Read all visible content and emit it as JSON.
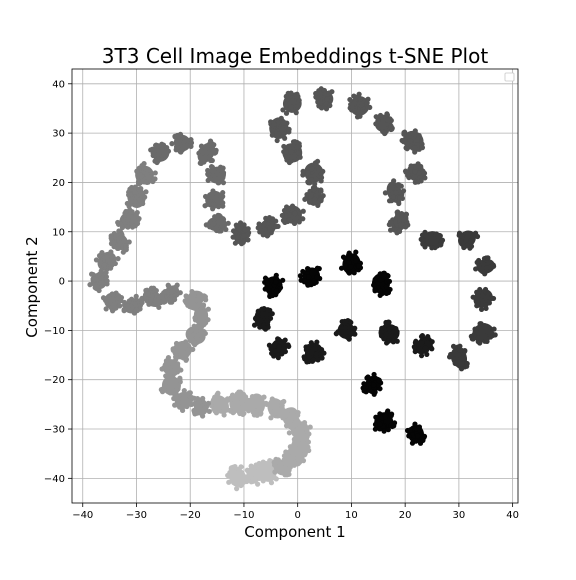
{
  "chart_data": {
    "type": "scatter",
    "title": "3T3 Cell Image Embeddings t-SNE Plot",
    "xlabel": "Component 1",
    "ylabel": "Component 2",
    "xlim": [
      -42,
      41
    ],
    "ylim": [
      -45,
      43
    ],
    "xticks": [
      -40,
      -30,
      -20,
      -10,
      0,
      10,
      20,
      30,
      40
    ],
    "yticks": [
      -40,
      -30,
      -20,
      -10,
      0,
      10,
      20,
      30,
      40
    ],
    "xtick_labels": [
      "−40",
      "−30",
      "−20",
      "−10",
      "0",
      "10",
      "20",
      "30",
      "40"
    ],
    "ytick_labels": [
      "−40",
      "−30",
      "−20",
      "−10",
      "0",
      "10",
      "20",
      "30",
      "40"
    ],
    "grid": true,
    "legend": "top-right (empty)",
    "marker_colors": [
      "#050505",
      "#1a1a1a",
      "#3a3a3a",
      "#555555",
      "#6a6a6a",
      "#7f7f7f",
      "#949494",
      "#aaaaaa",
      "#bebebe"
    ],
    "clusters": [
      {
        "x": -11.2,
        "y": -39.8,
        "shade": 8
      },
      {
        "x": -8.2,
        "y": -39.2,
        "shade": 8
      },
      {
        "x": -5.7,
        "y": -38.6,
        "shade": 8
      },
      {
        "x": -3.0,
        "y": -37.8,
        "shade": 7
      },
      {
        "x": -0.7,
        "y": -35.8,
        "shade": 7
      },
      {
        "x": 0.4,
        "y": -33.4,
        "shade": 7
      },
      {
        "x": 0.4,
        "y": -30.2,
        "shade": 7
      },
      {
        "x": -1.3,
        "y": -27.5,
        "shade": 7
      },
      {
        "x": -4.0,
        "y": -25.8,
        "shade": 7
      },
      {
        "x": -7.6,
        "y": -25.0,
        "shade": 7
      },
      {
        "x": -10.8,
        "y": -24.8,
        "shade": 7
      },
      {
        "x": -14.5,
        "y": -25.0,
        "shade": 7
      },
      {
        "x": -18.0,
        "y": -25.5,
        "shade": 6
      },
      {
        "x": -21.2,
        "y": -24.2,
        "shade": 6
      },
      {
        "x": -23.5,
        "y": -21.2,
        "shade": 6
      },
      {
        "x": -23.5,
        "y": -17.5,
        "shade": 6
      },
      {
        "x": -21.5,
        "y": -14.0,
        "shade": 6
      },
      {
        "x": -19.0,
        "y": -11.0,
        "shade": 6
      },
      {
        "x": -18.0,
        "y": -7.0,
        "shade": 6
      },
      {
        "x": -19.0,
        "y": -3.5,
        "shade": 6
      },
      {
        "x": -23.5,
        "y": -2.5,
        "shade": 5
      },
      {
        "x": -27.0,
        "y": -3.5,
        "shade": 5
      },
      {
        "x": -30.5,
        "y": -5.0,
        "shade": 5
      },
      {
        "x": -34.5,
        "y": -4.0,
        "shade": 5
      },
      {
        "x": -37.0,
        "y": 0.0,
        "shade": 5
      },
      {
        "x": -35.5,
        "y": 4.0,
        "shade": 5
      },
      {
        "x": -33.0,
        "y": 8.0,
        "shade": 5
      },
      {
        "x": -31.5,
        "y": 12.5,
        "shade": 5
      },
      {
        "x": -30.0,
        "y": 17.0,
        "shade": 5
      },
      {
        "x": -28.5,
        "y": 21.5,
        "shade": 5
      },
      {
        "x": -25.5,
        "y": 26.0,
        "shade": 4
      },
      {
        "x": -21.5,
        "y": 28.0,
        "shade": 4
      },
      {
        "x": -17.0,
        "y": 26.0,
        "shade": 4
      },
      {
        "x": -15.0,
        "y": 21.5,
        "shade": 4
      },
      {
        "x": -15.5,
        "y": 16.5,
        "shade": 4
      },
      {
        "x": -15.0,
        "y": 11.5,
        "shade": 4
      },
      {
        "x": -10.5,
        "y": 9.5,
        "shade": 3
      },
      {
        "x": -5.5,
        "y": 11.0,
        "shade": 3
      },
      {
        "x": -1.0,
        "y": 13.5,
        "shade": 3
      },
      {
        "x": 3.0,
        "y": 17.0,
        "shade": 3
      },
      {
        "x": 3.0,
        "y": 22.0,
        "shade": 3
      },
      {
        "x": -1.0,
        "y": 26.0,
        "shade": 3
      },
      {
        "x": -3.5,
        "y": 31.0,
        "shade": 3
      },
      {
        "x": -1.0,
        "y": 36.0,
        "shade": 3
      },
      {
        "x": 5.0,
        "y": 37.0,
        "shade": 3
      },
      {
        "x": 11.5,
        "y": 35.5,
        "shade": 3
      },
      {
        "x": 16.0,
        "y": 32.0,
        "shade": 3
      },
      {
        "x": 21.5,
        "y": 28.5,
        "shade": 3
      },
      {
        "x": 22.0,
        "y": 22.0,
        "shade": 3
      },
      {
        "x": 18.0,
        "y": 18.0,
        "shade": 3
      },
      {
        "x": 19.0,
        "y": 12.0,
        "shade": 3
      },
      {
        "x": 25.0,
        "y": 8.5,
        "shade": 2
      },
      {
        "x": 31.5,
        "y": 8.5,
        "shade": 2
      },
      {
        "x": 35.0,
        "y": 3.0,
        "shade": 2
      },
      {
        "x": 34.5,
        "y": -3.5,
        "shade": 2
      },
      {
        "x": 34.5,
        "y": -10.5,
        "shade": 2
      },
      {
        "x": 30.0,
        "y": -15.5,
        "shade": 2
      },
      {
        "x": 23.5,
        "y": -13.0,
        "shade": 1
      },
      {
        "x": 17.0,
        "y": -10.5,
        "shade": 1
      },
      {
        "x": 9.0,
        "y": -10.0,
        "shade": 1
      },
      {
        "x": 3.0,
        "y": -14.5,
        "shade": 1
      },
      {
        "x": -3.5,
        "y": -13.5,
        "shade": 1
      },
      {
        "x": -6.5,
        "y": -7.5,
        "shade": 1
      },
      {
        "x": -4.5,
        "y": -1.0,
        "shade": 0
      },
      {
        "x": 2.5,
        "y": 1.0,
        "shade": 0
      },
      {
        "x": 10.0,
        "y": 3.5,
        "shade": 0
      },
      {
        "x": 15.5,
        "y": -0.5,
        "shade": 0
      },
      {
        "x": 14.0,
        "y": -21.0,
        "shade": 0
      },
      {
        "x": 16.0,
        "y": -28.5,
        "shade": 0
      },
      {
        "x": 22.0,
        "y": -31.0,
        "shade": 0
      }
    ]
  }
}
